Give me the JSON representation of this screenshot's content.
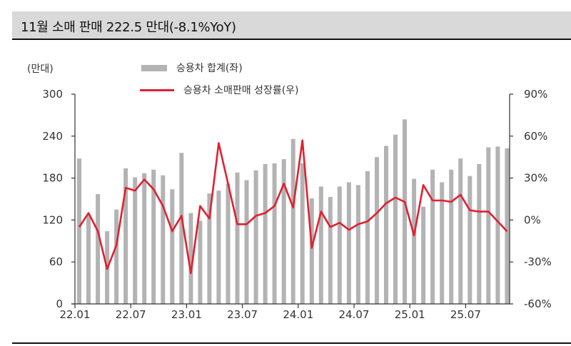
{
  "header": {
    "title": "11월 소매 판매 222.5 만대(-8.1%YoY)"
  },
  "unit_label": "(만대)",
  "legend": {
    "bar_label": "승용차 합계(좌)",
    "line_label": "승용차 소매판매 성장률(우)"
  },
  "colors": {
    "bar": "#b3b3b3",
    "line": "#e02030",
    "title_bg": "#d9d9d9"
  },
  "chart_data": {
    "type": "bar+line",
    "title": "11월 소매 판매 222.5 만대(-8.1%YoY)",
    "xlabel": "",
    "ylabel_left": "(만대)",
    "ylabel_right": "",
    "ylim_left": [
      0,
      300
    ],
    "yticks_left": [
      0,
      60,
      120,
      180,
      240,
      300
    ],
    "ylim_right": [
      -60,
      90
    ],
    "yticks_right": [
      "-60%",
      "-30%",
      "0%",
      "30%",
      "60%",
      "90%"
    ],
    "xtick_labels": [
      "22.01",
      "22.07",
      "23.01",
      "23.07",
      "24.01",
      "24.07",
      "25.01",
      "25.07"
    ],
    "grid": false,
    "legend_position": "top",
    "categories": [
      "22.01",
      "22.02",
      "22.03",
      "22.04",
      "22.05",
      "22.06",
      "22.07",
      "22.08",
      "22.09",
      "22.10",
      "22.11",
      "22.12",
      "23.01",
      "23.02",
      "23.03",
      "23.04",
      "23.05",
      "23.06",
      "23.07",
      "23.08",
      "23.09",
      "23.10",
      "23.11",
      "23.12",
      "24.01",
      "24.02",
      "24.03",
      "24.04",
      "24.05",
      "24.06",
      "24.07",
      "24.08",
      "24.09",
      "24.10",
      "24.11",
      "24.12",
      "25.01",
      "25.02",
      "25.03",
      "25.04",
      "25.05",
      "25.06",
      "25.07",
      "25.08",
      "25.09",
      "25.10",
      "25.11"
    ],
    "series": [
      {
        "name": "승용차 합계(좌)",
        "type": "bar",
        "axis": "left",
        "values": [
          208,
          128,
          157,
          104,
          135,
          194,
          181,
          187,
          192,
          184,
          164,
          216,
          130,
          119,
          158,
          162,
          172,
          188,
          177,
          191,
          200,
          201,
          207,
          236,
          201,
          151,
          168,
          153,
          168,
          174,
          170,
          190,
          210,
          226,
          242,
          264,
          179,
          139,
          192,
          174,
          192,
          208,
          183,
          200,
          224,
          225,
          222.5
        ]
      },
      {
        "name": "승용차 소매판매 성장률(우)",
        "type": "line",
        "axis": "right",
        "unit": "%",
        "values": [
          -5,
          5,
          -8,
          -35,
          -18,
          23,
          21,
          29,
          22,
          10,
          -8,
          3,
          -38,
          10,
          1,
          55,
          26,
          -3,
          -3,
          3,
          5,
          10,
          26,
          9,
          57,
          -20,
          6,
          -5,
          -2,
          -7,
          -3,
          -1,
          5,
          12,
          16,
          13,
          -11,
          25,
          14,
          14,
          13,
          18,
          7,
          6,
          6,
          -1,
          -8.1
        ]
      }
    ]
  }
}
